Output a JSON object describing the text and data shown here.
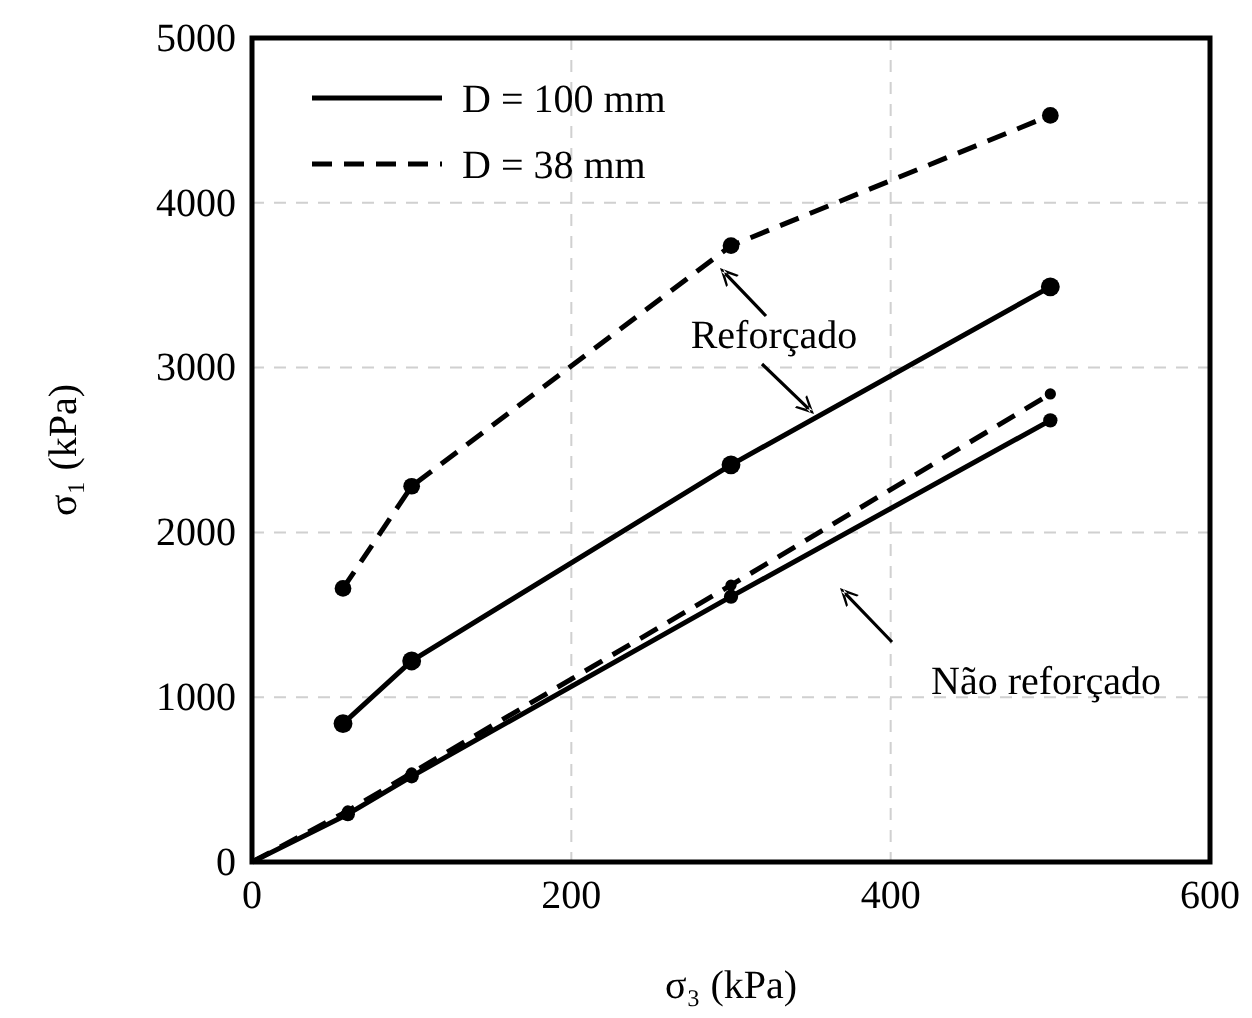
{
  "chart_data": {
    "type": "line",
    "xlabel": "σ₃ (kPa)",
    "ylabel": "σ₁ (kPa)",
    "xlim": [
      0,
      600
    ],
    "xticks": [
      0,
      200,
      400,
      600
    ],
    "ylim": [
      0,
      5000
    ],
    "yticks": [
      0,
      1000,
      2000,
      3000,
      4000,
      5000
    ],
    "grid": true,
    "legend": "top left",
    "marker": "circle",
    "annotations": [
      "Reforçado",
      "Não reforçado"
    ],
    "series": [
      {
        "name": "D = 100 mm",
        "color": "#000000",
        "line_style": "solid",
        "x": [
          57,
          100,
          300,
          500
        ],
        "values": [
          840,
          1220,
          2410,
          3490
        ]
      },
      {
        "name": "D = 38 mm",
        "color": "#000000",
        "line_style": "dashed",
        "x": [
          57,
          100,
          300,
          500
        ],
        "values": [
          1660,
          2280,
          3740,
          4530
        ]
      },
      {
        "color": "#000000",
        "line_style": "solid",
        "x": [
          0,
          60,
          100,
          300,
          500
        ],
        "values": [
          0,
          290,
          520,
          1610,
          2680
        ]
      },
      {
        "color": "#000000",
        "line_style": "dashed",
        "x": [
          0,
          60,
          100,
          300,
          500
        ],
        "values": [
          0,
          310,
          540,
          1680,
          2840
        ]
      }
    ]
  }
}
